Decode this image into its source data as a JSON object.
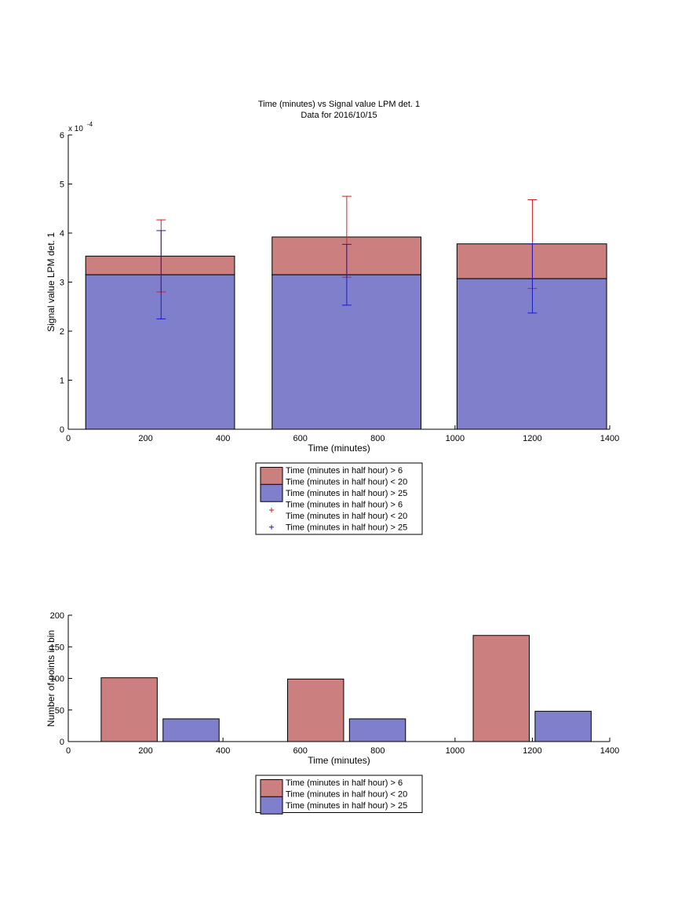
{
  "colors": {
    "red_bar": "#cc7f7f",
    "blue_bar": "#7f7fcc",
    "red_err": "#cc2222",
    "blue_err": "#1a1acc",
    "axis": "#000000"
  },
  "chart_data": [
    {
      "type": "bar",
      "stacked": true,
      "title": "Time (minutes) vs Signal value LPM det. 1",
      "subtitle": "Data for 2016/10/15",
      "xlabel": "Time (minutes)",
      "ylabel": "Signal value LPM det. 1",
      "y_exponent_label": "x 10",
      "y_exponent_power": "-4",
      "xlim": [
        0,
        1400
      ],
      "ylim": [
        0,
        6
      ],
      "xticks": [
        0,
        200,
        400,
        600,
        800,
        1000,
        1200,
        1400
      ],
      "yticks": [
        0,
        1,
        2,
        3,
        4,
        5,
        6
      ],
      "grid": false,
      "legend_position": "bottom",
      "bars": [
        {
          "x0": 45,
          "x1": 430,
          "blue": 3.15,
          "red": 3.53
        },
        {
          "x0": 527,
          "x1": 912,
          "blue": 3.15,
          "red": 3.92
        },
        {
          "x0": 1005,
          "x1": 1392,
          "blue": 3.07,
          "red": 3.78
        }
      ],
      "errorbars": [
        {
          "series": "red",
          "x": 240,
          "y": 3.53,
          "low": 2.8,
          "high": 4.27
        },
        {
          "series": "red",
          "x": 720,
          "y": 3.92,
          "low": 3.1,
          "high": 4.75
        },
        {
          "series": "red",
          "x": 1200,
          "y": 3.78,
          "low": 2.87,
          "high": 4.68
        },
        {
          "series": "blue",
          "x": 240,
          "y": 3.15,
          "low": 2.25,
          "high": 4.05
        },
        {
          "series": "blue",
          "x": 720,
          "y": 3.15,
          "low": 2.53,
          "high": 3.77
        },
        {
          "series": "blue",
          "x": 1200,
          "y": 3.07,
          "low": 2.37,
          "high": 3.78
        }
      ],
      "legend": [
        {
          "kind": "box",
          "color": "red",
          "lines": [
            "Time (minutes in half hour) > 6",
            "Time (minutes in half hour) < 20"
          ]
        },
        {
          "kind": "box",
          "color": "blue",
          "lines": [
            "Time (minutes in half hour) > 25"
          ]
        },
        {
          "kind": "marker",
          "color": "red",
          "lines": [
            "Time (minutes in half hour) > 6",
            "Time (minutes in half hour) < 20"
          ]
        },
        {
          "kind": "marker",
          "color": "blue",
          "lines": [
            "Time (minutes in half hour) > 25"
          ]
        }
      ]
    },
    {
      "type": "bar",
      "title": "",
      "xlabel": "Time (minutes)",
      "ylabel": "Number of points in bin",
      "xlim": [
        0,
        1400
      ],
      "ylim": [
        0,
        200
      ],
      "xticks": [
        0,
        200,
        400,
        600,
        800,
        1000,
        1200,
        1400
      ],
      "yticks": [
        0,
        50,
        100,
        150,
        200
      ],
      "grid": false,
      "legend_position": "bottom",
      "bars": [
        {
          "series": "red",
          "x0": 85,
          "x1": 230,
          "value": 101
        },
        {
          "series": "blue",
          "x0": 245,
          "x1": 390,
          "value": 36
        },
        {
          "series": "red",
          "x0": 567,
          "x1": 712,
          "value": 99
        },
        {
          "series": "blue",
          "x0": 727,
          "x1": 872,
          "value": 36
        },
        {
          "series": "red",
          "x0": 1047,
          "x1": 1192,
          "value": 168
        },
        {
          "series": "blue",
          "x0": 1207,
          "x1": 1352,
          "value": 48
        }
      ],
      "legend": [
        {
          "kind": "box",
          "color": "red",
          "lines": [
            "Time (minutes in half hour) > 6",
            "Time (minutes in half hour) < 20"
          ]
        },
        {
          "kind": "box",
          "color": "blue",
          "lines": [
            "Time (minutes in half hour) > 25"
          ]
        }
      ]
    }
  ]
}
